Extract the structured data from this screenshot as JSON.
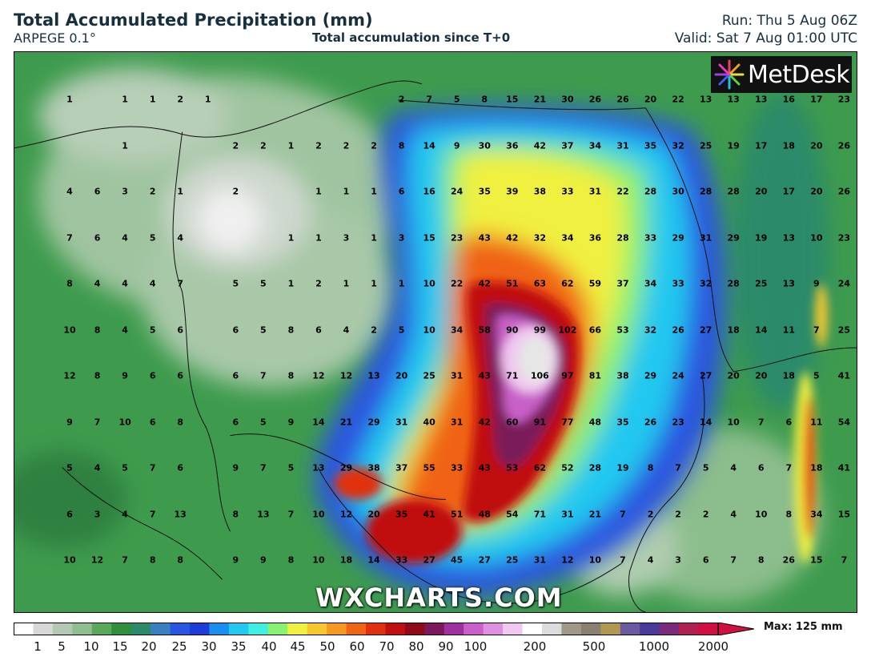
{
  "header": {
    "title": "Total Accumulated Precipitation (mm)",
    "model": "ARPEGE 0.1°",
    "subtitle": "Total accumulation since T+0",
    "run": "Run: Thu 5 Aug 06Z",
    "valid": "Valid: Sat 7 Aug 01:00 UTC"
  },
  "logo": {
    "brand": "MetDesk"
  },
  "watermark": "WXCHARTS.COM",
  "colorbar": {
    "ticks": [
      "1",
      "5",
      "10",
      "15",
      "20",
      "25",
      "30",
      "35",
      "40",
      "45",
      "50",
      "60",
      "70",
      "80",
      "90",
      "100",
      "200",
      "500",
      "1000",
      "2000"
    ],
    "max_label": "Max: 125 mm",
    "colors": [
      "#ffffff",
      "#d8d8d8",
      "#b4c9b4",
      "#8fbf8f",
      "#5aa85a",
      "#2f8f3f",
      "#2a8a6a",
      "#3a7fc0",
      "#2a55e0",
      "#1e3cd8",
      "#1a8ff0",
      "#23c8f0",
      "#3ff0e0",
      "#8af070",
      "#f0f040",
      "#f5c830",
      "#f59a20",
      "#f06418",
      "#e03010",
      "#c01010",
      "#900a1a",
      "#7a1a5a",
      "#a030a0",
      "#c860c8",
      "#e090e0",
      "#f0c8f0",
      "#ffffff",
      "#dcdcdc",
      "#a09888",
      "#8a8070",
      "#b09850",
      "#6a5aa0",
      "#4a3a9a",
      "#7a2a7a",
      "#b02050",
      "#d01040"
    ]
  },
  "map_labels": [
    {
      "r": 0,
      "vals": [
        "1",
        "",
        "1",
        "1",
        "2",
        "1",
        "",
        "",
        "",
        "",
        "",
        "",
        "2",
        "7",
        "5",
        "8",
        "15",
        "21",
        "30",
        "26",
        "26",
        "20",
        "22",
        "13",
        "13",
        "13",
        "16",
        "17",
        "23"
      ]
    },
    {
      "r": 1,
      "vals": [
        "",
        "",
        "1",
        "",
        "",
        "",
        "2",
        "2",
        "1",
        "2",
        "2",
        "2",
        "8",
        "14",
        "9",
        "30",
        "36",
        "42",
        "37",
        "34",
        "31",
        "35",
        "32",
        "25",
        "19",
        "17",
        "18",
        "20",
        "26"
      ]
    },
    {
      "r": 2,
      "vals": [
        "4",
        "6",
        "3",
        "2",
        "1",
        "",
        "2",
        "",
        "",
        "1",
        "1",
        "1",
        "6",
        "16",
        "24",
        "35",
        "39",
        "38",
        "33",
        "31",
        "22",
        "28",
        "30",
        "28",
        "28",
        "20",
        "17",
        "20",
        "26"
      ]
    },
    {
      "r": 3,
      "vals": [
        "7",
        "6",
        "4",
        "5",
        "4",
        "",
        "",
        "",
        "1",
        "1",
        "3",
        "1",
        "3",
        "15",
        "23",
        "43",
        "42",
        "32",
        "34",
        "36",
        "28",
        "33",
        "29",
        "31",
        "29",
        "19",
        "13",
        "10",
        "23"
      ]
    },
    {
      "r": 4,
      "vals": [
        "8",
        "4",
        "4",
        "4",
        "7",
        "",
        "5",
        "5",
        "1",
        "2",
        "1",
        "1",
        "1",
        "10",
        "22",
        "42",
        "51",
        "63",
        "62",
        "59",
        "37",
        "34",
        "33",
        "32",
        "28",
        "25",
        "13",
        "9",
        "24"
      ]
    },
    {
      "r": 5,
      "vals": [
        "10",
        "8",
        "4",
        "5",
        "6",
        "",
        "6",
        "5",
        "8",
        "6",
        "4",
        "2",
        "5",
        "10",
        "34",
        "58",
        "90",
        "99",
        "102",
        "66",
        "53",
        "32",
        "26",
        "27",
        "18",
        "14",
        "11",
        "7",
        "25"
      ]
    },
    {
      "r": 6,
      "vals": [
        "12",
        "8",
        "9",
        "6",
        "6",
        "",
        "6",
        "7",
        "8",
        "12",
        "12",
        "13",
        "20",
        "25",
        "31",
        "43",
        "71",
        "106",
        "97",
        "81",
        "38",
        "29",
        "24",
        "27",
        "20",
        "20",
        "18",
        "5",
        "41"
      ]
    },
    {
      "r": 7,
      "vals": [
        "9",
        "7",
        "10",
        "6",
        "8",
        "",
        "6",
        "5",
        "9",
        "14",
        "21",
        "29",
        "31",
        "40",
        "31",
        "42",
        "60",
        "91",
        "77",
        "48",
        "35",
        "26",
        "23",
        "14",
        "10",
        "7",
        "6",
        "11",
        "54"
      ]
    },
    {
      "r": 8,
      "vals": [
        "5",
        "4",
        "5",
        "7",
        "6",
        "",
        "9",
        "7",
        "5",
        "13",
        "29",
        "38",
        "37",
        "55",
        "33",
        "43",
        "53",
        "62",
        "52",
        "28",
        "19",
        "8",
        "7",
        "5",
        "4",
        "6",
        "7",
        "18",
        "41"
      ]
    },
    {
      "r": 9,
      "vals": [
        "6",
        "3",
        "4",
        "7",
        "13",
        "",
        "8",
        "13",
        "7",
        "10",
        "12",
        "20",
        "35",
        "41",
        "51",
        "48",
        "54",
        "71",
        "31",
        "21",
        "7",
        "2",
        "2",
        "2",
        "4",
        "10",
        "8",
        "34",
        "15"
      ]
    },
    {
      "r": 10,
      "vals": [
        "10",
        "12",
        "7",
        "8",
        "8",
        "",
        "9",
        "9",
        "8",
        "10",
        "18",
        "14",
        "33",
        "27",
        "45",
        "27",
        "25",
        "31",
        "12",
        "10",
        "7",
        "4",
        "3",
        "6",
        "7",
        "8",
        "26",
        "15",
        "7"
      ]
    }
  ]
}
